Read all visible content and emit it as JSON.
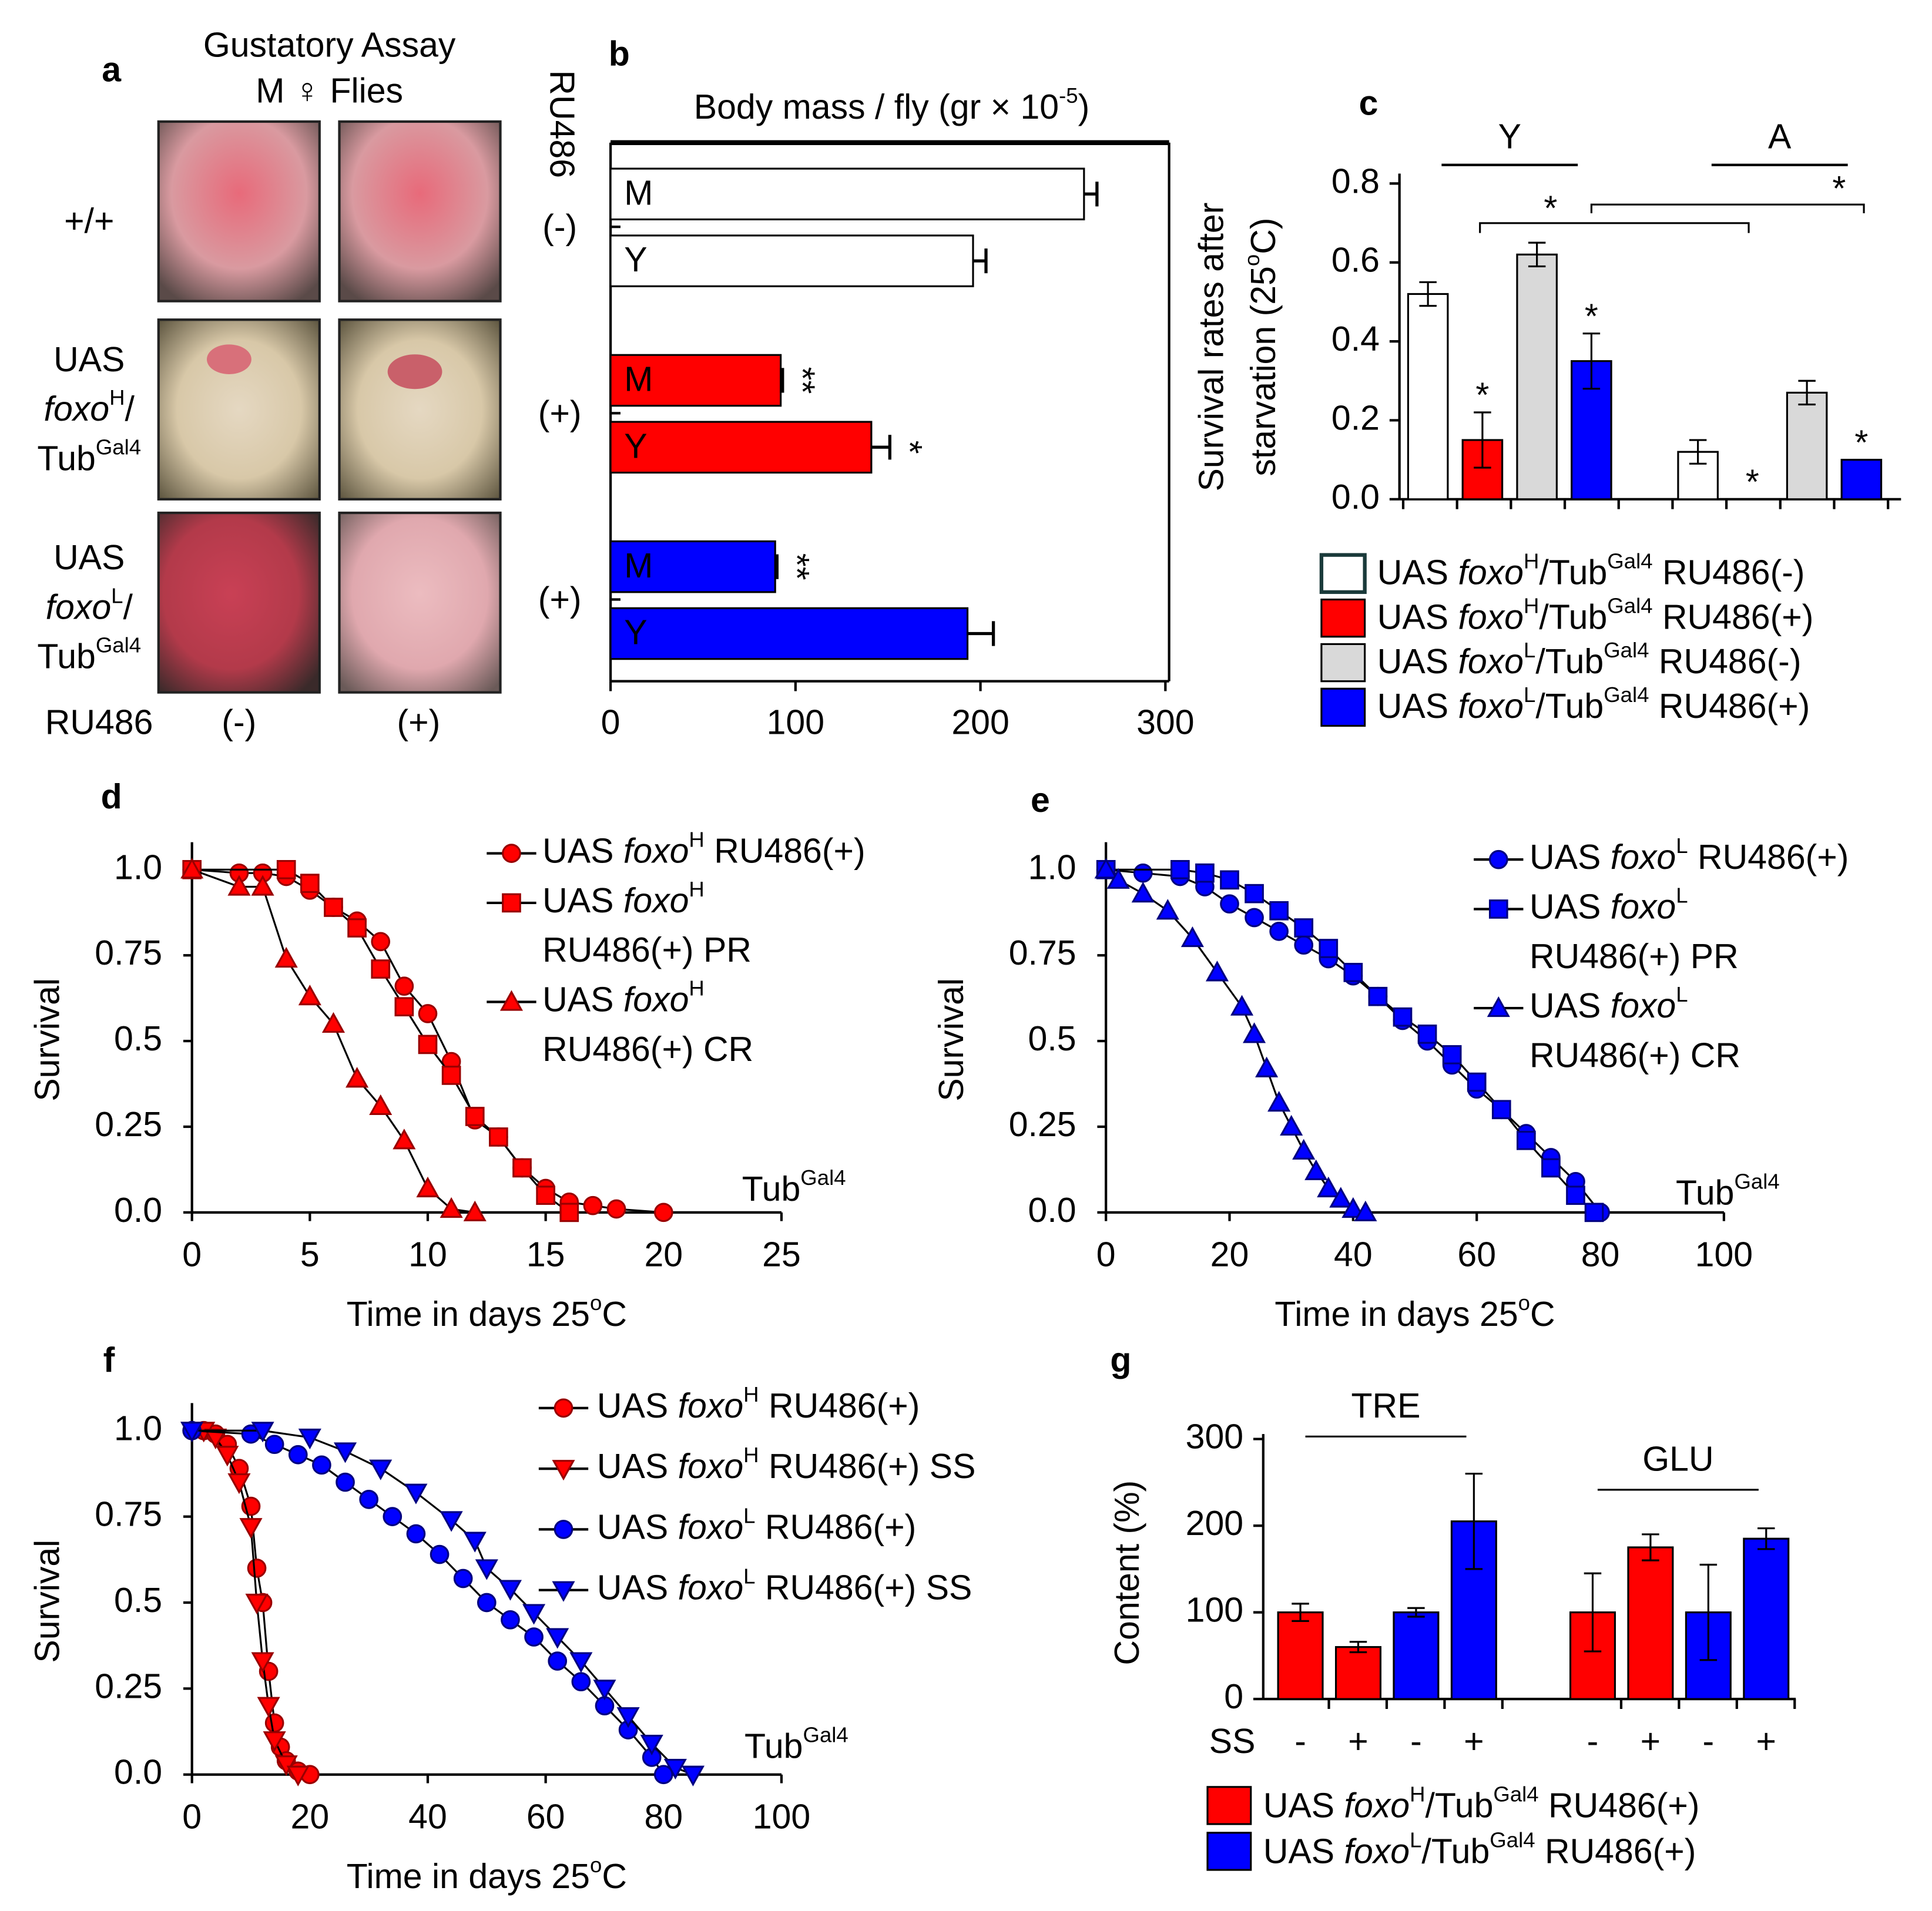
{
  "panel_a": {
    "label": "a",
    "title": "Gustatory Assay",
    "subtitle": "M ♀ Flies",
    "rows": [
      [
        "+/+"
      ],
      [
        "UAS",
        "foxoH/",
        "TubGal4"
      ],
      [
        "UAS",
        "foxoL/",
        "TubGal4"
      ]
    ],
    "treatment": "RU486",
    "columns": [
      "(-)",
      "(+)"
    ]
  },
  "chart_data": [
    {
      "type": "barh",
      "label": "b",
      "title": "Body mass / fly (gr × 10-5)",
      "group_title": "RU486",
      "xlim": [
        0,
        300
      ],
      "xticks": [
        0,
        100,
        200,
        300
      ],
      "groups": [
        {
          "label": "(-)",
          "bars": [
            {
              "label": "M",
              "value": 256,
              "error": 7,
              "color": "#ffffff"
            },
            {
              "label": "Y",
              "value": 196,
              "error": 7,
              "color": "#ffffff"
            }
          ]
        },
        {
          "label": "(+)",
          "bars": [
            {
              "label": "M",
              "value": 92,
              "error": 1,
              "color": "#ff0000",
              "sig": "**"
            },
            {
              "label": "Y",
              "value": 141,
              "error": 10,
              "color": "#ff0000",
              "sig": "*"
            }
          ]
        },
        {
          "label": "(+)",
          "bars": [
            {
              "label": "M",
              "value": 89,
              "error": 1,
              "color": "#0000ff",
              "sig": "**"
            },
            {
              "label": "Y",
              "value": 193,
              "error": 14,
              "color": "#0000ff"
            }
          ]
        }
      ]
    },
    {
      "type": "bar",
      "label": "c",
      "ylabel": [
        "Survival rates after",
        "starvation (25oC)"
      ],
      "categories": [
        "Y",
        "A"
      ],
      "ylim": [
        0,
        0.8
      ],
      "yticks": [
        {
          "value": 0,
          "label": "0.0"
        },
        0.2,
        0.4,
        0.6,
        0.8
      ],
      "series": [
        {
          "name": "UAS foxoH/TubGal4 RU486(-)",
          "color": "#ffffff",
          "values": [
            0.52,
            0.12
          ],
          "errors": [
            0.03,
            0.03
          ]
        },
        {
          "name": "UAS foxoH/TubGal4 RU486(+)",
          "color": "#ff0000",
          "values": [
            0.15,
            0
          ],
          "errors": [
            0.07,
            0
          ],
          "sig": [
            "*",
            "*"
          ]
        },
        {
          "name": "UAS foxoL/TubGal4 RU486(-)",
          "color": "#d9d9d9",
          "values": [
            0.62,
            0.27
          ],
          "errors": [
            0.03,
            0.03
          ]
        },
        {
          "name": "UAS foxoL/TubGal4 RU486(+)",
          "color": "#0000ff",
          "values": [
            0.35,
            0.1
          ],
          "errors": [
            0.07,
            0
          ],
          "sig": [
            "*",
            "*"
          ]
        }
      ],
      "brackets": [
        "*",
        "*"
      ]
    },
    {
      "type": "line",
      "label": "d",
      "xlabel": "Time in days 25oC",
      "ylabel": "Survival",
      "annotation": "TubGal4",
      "xlim": [
        0,
        25
      ],
      "xticks": [
        0,
        5,
        10,
        15,
        20,
        25
      ],
      "ylim": [
        0,
        1.08
      ],
      "yticks": [
        {
          "value": 0,
          "label": "0.0"
        },
        0.25,
        0.5,
        0.75,
        {
          "value": 1,
          "label": "1.0"
        }
      ],
      "series": [
        {
          "name": [
            "UAS foxoH RU486(+)"
          ],
          "color": "#ff0000",
          "edgecolor": "#990000",
          "marker": "circle",
          "x": [
            0,
            2,
            3,
            4,
            5,
            6,
            7,
            8,
            9,
            10,
            11,
            12,
            13,
            14,
            15,
            16,
            17,
            18,
            20
          ],
          "values": [
            1,
            0.99,
            0.99,
            0.98,
            0.94,
            0.89,
            0.85,
            0.79,
            0.66,
            0.58,
            0.44,
            0.27,
            0.22,
            0.13,
            0.07,
            0.03,
            0.02,
            0.01,
            0
          ]
        },
        {
          "name": [
            "UAS foxoH",
            "RU486(+) PR"
          ],
          "color": "#ff0000",
          "edgecolor": "#990000",
          "marker": "square",
          "x": [
            0,
            4,
            5,
            6,
            7,
            8,
            9,
            10,
            11,
            12,
            13,
            14,
            15,
            16
          ],
          "values": [
            1,
            1,
            0.96,
            0.89,
            0.83,
            0.71,
            0.6,
            0.49,
            0.4,
            0.28,
            0.22,
            0.13,
            0.05,
            0
          ]
        },
        {
          "name": [
            "UAS foxoH",
            "RU486(+) CR"
          ],
          "color": "#ff0000",
          "edgecolor": "#990000",
          "marker": "triangle",
          "x": [
            0,
            2,
            3,
            4,
            5,
            6,
            7,
            8,
            9,
            10,
            11,
            12
          ],
          "values": [
            1,
            0.95,
            0.95,
            0.74,
            0.63,
            0.55,
            0.39,
            0.31,
            0.21,
            0.07,
            0.01,
            0
          ]
        }
      ]
    },
    {
      "type": "line",
      "label": "e",
      "xlabel": "Time in days 25oC",
      "ylabel": "Survival",
      "annotation": "TubGal4",
      "xlim": [
        0,
        100
      ],
      "xticks": [
        0,
        20,
        40,
        60,
        80,
        100
      ],
      "ylim": [
        0,
        1.08
      ],
      "yticks": [
        {
          "value": 0,
          "label": "0.0"
        },
        0.25,
        0.5,
        0.75,
        {
          "value": 1,
          "label": "1.0"
        }
      ],
      "series": [
        {
          "name": [
            "UAS foxoL RU486(+)"
          ],
          "color": "#0000ff",
          "edgecolor": "#000080",
          "marker": "circle",
          "x": [
            0,
            6,
            12,
            16,
            20,
            24,
            28,
            32,
            36,
            40,
            44,
            48,
            52,
            56,
            60,
            64,
            68,
            72,
            76,
            80
          ],
          "values": [
            1,
            0.99,
            0.98,
            0.95,
            0.9,
            0.86,
            0.82,
            0.78,
            0.74,
            0.69,
            0.63,
            0.56,
            0.5,
            0.43,
            0.36,
            0.3,
            0.23,
            0.16,
            0.09,
            0
          ]
        },
        {
          "name": [
            "UAS foxoL",
            "RU486(+) PR"
          ],
          "color": "#0000ff",
          "edgecolor": "#000080",
          "marker": "square",
          "x": [
            0,
            12,
            16,
            20,
            24,
            28,
            32,
            36,
            40,
            44,
            48,
            52,
            56,
            60,
            64,
            68,
            72,
            76,
            79
          ],
          "values": [
            1,
            1,
            0.99,
            0.97,
            0.93,
            0.88,
            0.83,
            0.77,
            0.7,
            0.63,
            0.57,
            0.52,
            0.46,
            0.38,
            0.3,
            0.21,
            0.13,
            0.05,
            0
          ]
        },
        {
          "name": [
            "UAS foxoL",
            "RU486(+) CR"
          ],
          "color": "#0000ff",
          "edgecolor": "#000080",
          "marker": "triangle",
          "x": [
            0,
            2,
            6,
            10,
            14,
            18,
            22,
            24,
            26,
            28,
            30,
            32,
            34,
            36,
            38,
            40,
            42
          ],
          "values": [
            1,
            0.97,
            0.93,
            0.88,
            0.8,
            0.7,
            0.6,
            0.52,
            0.42,
            0.32,
            0.25,
            0.18,
            0.12,
            0.07,
            0.04,
            0.01,
            0
          ]
        }
      ]
    },
    {
      "type": "line",
      "label": "f",
      "xlabel": "Time in days 25oC",
      "ylabel": "Survival",
      "annotation": "TubGal4",
      "xlim": [
        0,
        100
      ],
      "xticks": [
        0,
        20,
        40,
        60,
        80,
        100
      ],
      "ylim": [
        0,
        1.08
      ],
      "yticks": [
        {
          "value": 0,
          "label": "0.0"
        },
        0.25,
        0.5,
        0.75,
        {
          "value": 1,
          "label": "1.0"
        }
      ],
      "series": [
        {
          "name": [
            "UAS foxoH RU486(+)"
          ],
          "color": "#ff0000",
          "edgecolor": "#990000",
          "marker": "circle",
          "x": [
            0,
            2,
            4,
            6,
            8,
            10,
            11,
            12,
            13,
            14,
            15,
            16,
            18,
            20
          ],
          "values": [
            1,
            1,
            0.99,
            0.96,
            0.89,
            0.78,
            0.6,
            0.5,
            0.3,
            0.15,
            0.08,
            0.04,
            0.01,
            0
          ]
        },
        {
          "name": [
            "UAS foxoH RU486(+) SS"
          ],
          "color": "#ff0000",
          "edgecolor": "#990000",
          "marker": "triangle-down",
          "x": [
            0,
            2,
            4,
            6,
            8,
            10,
            11,
            12,
            13,
            14,
            16,
            18
          ],
          "values": [
            1,
            1,
            0.98,
            0.93,
            0.85,
            0.72,
            0.5,
            0.33,
            0.2,
            0.1,
            0.03,
            0
          ]
        },
        {
          "name": [
            "UAS foxoL RU486(+)"
          ],
          "color": "#0000ff",
          "edgecolor": "#000080",
          "marker": "circle",
          "x": [
            0,
            10,
            14,
            18,
            22,
            26,
            30,
            34,
            38,
            42,
            46,
            50,
            54,
            58,
            62,
            66,
            70,
            74,
            78,
            80
          ],
          "values": [
            1,
            0.99,
            0.96,
            0.93,
            0.9,
            0.85,
            0.8,
            0.75,
            0.7,
            0.64,
            0.57,
            0.5,
            0.45,
            0.4,
            0.33,
            0.27,
            0.2,
            0.13,
            0.05,
            0
          ]
        },
        {
          "name": [
            "UAS foxoL RU486(+) SS"
          ],
          "color": "#0000ff",
          "edgecolor": "#000080",
          "marker": "triangle-down",
          "x": [
            0,
            12,
            20,
            26,
            32,
            38,
            44,
            48,
            50,
            54,
            58,
            62,
            66,
            70,
            74,
            78,
            82,
            85
          ],
          "values": [
            1,
            1,
            0.98,
            0.94,
            0.89,
            0.82,
            0.74,
            0.68,
            0.6,
            0.54,
            0.47,
            0.4,
            0.33,
            0.25,
            0.17,
            0.09,
            0.02,
            0
          ]
        }
      ]
    },
    {
      "type": "grouped-bar",
      "label": "g",
      "ylabel": "Content (%)",
      "categories": [
        "TRE",
        "GLU"
      ],
      "subcategory_title": "SS",
      "subcategories": [
        "-",
        "+"
      ],
      "ylim": [
        0,
        300
      ],
      "yticks": [
        0,
        100,
        200,
        300
      ],
      "series": [
        {
          "name": "UAS foxoH/TubGal4 RU486(+)",
          "color": "#ff0000",
          "values": [
            [
              100,
              60
            ],
            [
              100,
              175
            ]
          ],
          "errors": [
            [
              10,
              6
            ],
            [
              45,
              15
            ]
          ]
        },
        {
          "name": "UAS foxoL/TubGal4 RU486(+)",
          "color": "#0000ff",
          "values": [
            [
              100,
              205
            ],
            [
              100,
              185
            ]
          ],
          "errors": [
            [
              5,
              55
            ],
            [
              55,
              12
            ]
          ]
        }
      ]
    }
  ]
}
